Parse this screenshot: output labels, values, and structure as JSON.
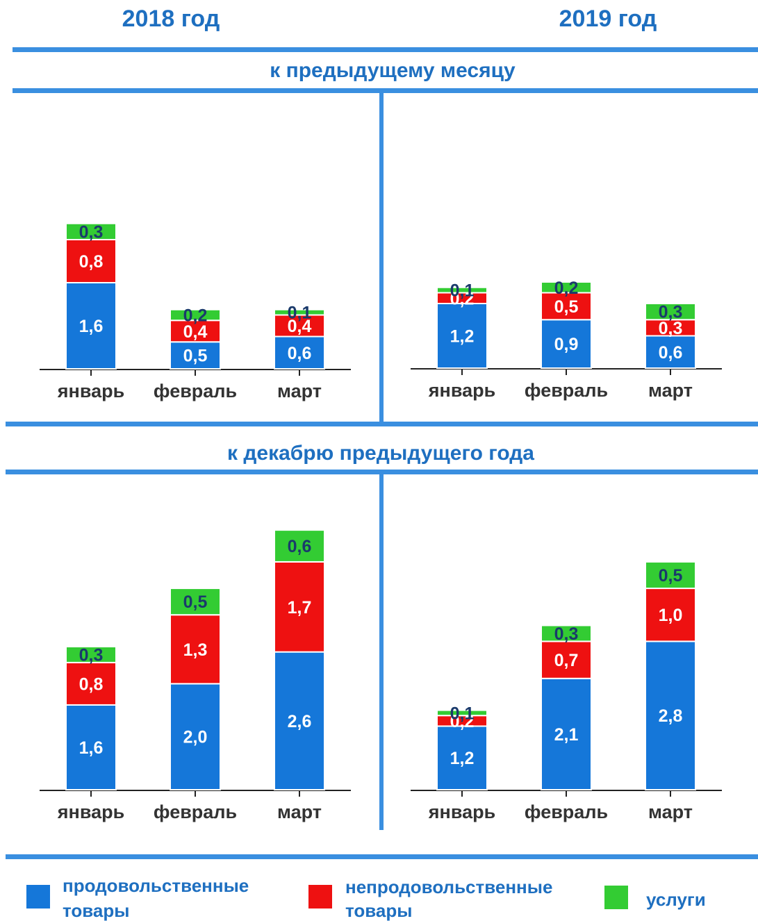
{
  "headers": {
    "year_left": "2018 год",
    "year_right": "2019 год",
    "section_top": "к предыдущему месяцу",
    "section_bottom": "к декабрю предыдущего года"
  },
  "colors": {
    "food": "#1577d9",
    "nonfood": "#ee1111",
    "services": "#33cc33",
    "rule": "#3a8fe0",
    "header_text": "#1e6fc0",
    "category_text": "#333333",
    "label_on_dark": "#ffffff",
    "label_on_green": "#1a3a6b"
  },
  "legend": [
    {
      "key": "food",
      "line1": "продовольственные",
      "line2": "товары"
    },
    {
      "key": "nonfood",
      "line1": "непродовольственные",
      "line2": "товары"
    },
    {
      "key": "services",
      "line1": "услуги",
      "line2": ""
    }
  ],
  "chart_data": [
    {
      "type": "bar",
      "stacked": true,
      "section": "к предыдущему месяцу",
      "year": "2018 год",
      "categories": [
        "январь",
        "февраль",
        "март"
      ],
      "series": [
        {
          "name": "продовольственные товары",
          "values": [
            1.6,
            0.5,
            0.6
          ],
          "labels": [
            "1,6",
            "0,5",
            "0,6"
          ]
        },
        {
          "name": "непродовольственные товары",
          "values": [
            0.8,
            0.4,
            0.4
          ],
          "labels": [
            "0,8",
            "0,4",
            "0,4"
          ]
        },
        {
          "name": "услуги",
          "values": [
            0.3,
            0.2,
            0.1
          ],
          "labels": [
            "0,3",
            "0,2",
            "0,1"
          ]
        }
      ]
    },
    {
      "type": "bar",
      "stacked": true,
      "section": "к предыдущему месяцу",
      "year": "2019 год",
      "categories": [
        "январь",
        "февраль",
        "март"
      ],
      "series": [
        {
          "name": "продовольственные товары",
          "values": [
            1.2,
            0.9,
            0.6
          ],
          "labels": [
            "1,2",
            "0,9",
            "0,6"
          ]
        },
        {
          "name": "непродовольственные товары",
          "values": [
            0.2,
            0.5,
            0.3
          ],
          "labels": [
            "0,2",
            "0,5",
            "0,3"
          ]
        },
        {
          "name": "услуги",
          "values": [
            0.1,
            0.2,
            0.3
          ],
          "labels": [
            "0,1",
            "0,2",
            "0,3"
          ]
        }
      ]
    },
    {
      "type": "bar",
      "stacked": true,
      "section": "к декабрю предыдущего года",
      "year": "2018 год",
      "categories": [
        "январь",
        "февраль",
        "март"
      ],
      "series": [
        {
          "name": "продовольственные товары",
          "values": [
            1.6,
            2.0,
            2.6
          ],
          "labels": [
            "1,6",
            "2,0",
            "2,6"
          ]
        },
        {
          "name": "непродовольственные товары",
          "values": [
            0.8,
            1.3,
            1.7
          ],
          "labels": [
            "0,8",
            "1,3",
            "1,7"
          ]
        },
        {
          "name": "услуги",
          "values": [
            0.3,
            0.5,
            0.6
          ],
          "labels": [
            "0,3",
            "0,5",
            "0,6"
          ]
        }
      ]
    },
    {
      "type": "bar",
      "stacked": true,
      "section": "к декабрю предыдущего года",
      "year": "2019 год",
      "categories": [
        "январь",
        "февраль",
        "март"
      ],
      "series": [
        {
          "name": "продовольственные товары",
          "values": [
            1.2,
            2.1,
            2.8
          ],
          "labels": [
            "1,2",
            "2,1",
            "2,8"
          ]
        },
        {
          "name": "непродовольственные товары",
          "values": [
            0.2,
            0.7,
            1.0
          ],
          "labels": [
            "0,2",
            "0,7",
            "1,0"
          ]
        },
        {
          "name": "услуги",
          "values": [
            0.1,
            0.3,
            0.5
          ],
          "labels": [
            "0,1",
            "0,3",
            "0,5"
          ]
        }
      ]
    }
  ]
}
